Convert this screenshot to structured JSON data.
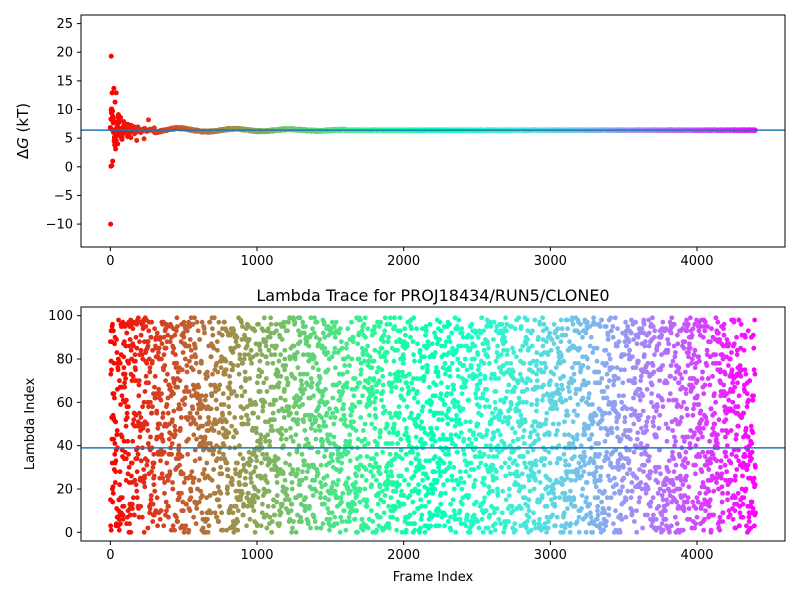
{
  "chart_data": [
    {
      "type": "scatter",
      "title": "",
      "xlabel": "",
      "ylabel": "ΔG (kT)",
      "ylabel_italic_part": "G",
      "xlim": [
        -200,
        4600
      ],
      "ylim": [
        -14,
        26.5
      ],
      "xticks": [
        0,
        1000,
        2000,
        3000,
        4000
      ],
      "yticks": [
        -10,
        -5,
        0,
        5,
        10,
        15,
        20,
        25
      ],
      "ytick_labels": [
        "−10",
        "−5",
        "0",
        "5",
        "10",
        "15",
        "20",
        "25"
      ],
      "colormap": "rainbow",
      "num_points": 4400,
      "converged_value": 6.4,
      "hline_value": 6.4,
      "hline_color": "#1f77b4",
      "early_points": [
        {
          "x": 2,
          "y": -10.0
        },
        {
          "x": 4,
          "y": 0.1
        },
        {
          "x": 6,
          "y": 19.3
        },
        {
          "x": 8,
          "y": 10.1
        },
        {
          "x": 10,
          "y": 0.2
        },
        {
          "x": 12,
          "y": 12.9
        },
        {
          "x": 14,
          "y": 9.8
        },
        {
          "x": 16,
          "y": 1.0
        },
        {
          "x": 18,
          "y": 6.3
        },
        {
          "x": 20,
          "y": 8.1
        },
        {
          "x": 24,
          "y": 13.7
        },
        {
          "x": 28,
          "y": 5.2
        },
        {
          "x": 32,
          "y": 11.3
        },
        {
          "x": 36,
          "y": 3.1
        },
        {
          "x": 40,
          "y": 12.9
        },
        {
          "x": 45,
          "y": 7.8
        },
        {
          "x": 50,
          "y": 4.0
        },
        {
          "x": 55,
          "y": 9.1
        },
        {
          "x": 60,
          "y": 5.5
        },
        {
          "x": 70,
          "y": 8.6
        },
        {
          "x": 80,
          "y": 4.8
        },
        {
          "x": 90,
          "y": 7.9
        },
        {
          "x": 100,
          "y": 5.9
        },
        {
          "x": 120,
          "y": 7.4
        },
        {
          "x": 140,
          "y": 5.1
        },
        {
          "x": 160,
          "y": 7.0
        },
        {
          "x": 180,
          "y": 4.6
        },
        {
          "x": 200,
          "y": 6.2
        },
        {
          "x": 230,
          "y": 4.9
        },
        {
          "x": 260,
          "y": 8.2
        },
        {
          "x": 300,
          "y": 6.8
        },
        {
          "x": 340,
          "y": 5.6
        },
        {
          "x": 400,
          "y": 6.6
        },
        {
          "x": 460,
          "y": 5.2
        },
        {
          "x": 520,
          "y": 6.9
        },
        {
          "x": 600,
          "y": 6.0
        },
        {
          "x": 700,
          "y": 6.7
        },
        {
          "x": 800,
          "y": 6.1
        },
        {
          "x": 900,
          "y": 6.6
        },
        {
          "x": 1000,
          "y": 6.9
        },
        {
          "x": 1300,
          "y": 6.9
        },
        {
          "x": 1600,
          "y": 6.2
        },
        {
          "x": 2000,
          "y": 6.3
        },
        {
          "x": 2700,
          "y": 6.5
        },
        {
          "x": 3500,
          "y": 6.4
        },
        {
          "x": 4400,
          "y": 6.4
        }
      ]
    },
    {
      "type": "scatter",
      "title": "Lambda Trace for PROJ18434/RUN5/CLONE0",
      "xlabel": "Frame Index",
      "ylabel": "Lambda Index",
      "xlim": [
        -200,
        4600
      ],
      "ylim": [
        -4,
        104
      ],
      "xticks": [
        0,
        1000,
        2000,
        3000,
        4000
      ],
      "yticks": [
        0,
        20,
        40,
        60,
        80,
        100
      ],
      "colormap": "rainbow",
      "num_points": 4400,
      "lambda_range": [
        0,
        99
      ],
      "hline_value": 39,
      "hline_color": "#1f77b4"
    }
  ]
}
